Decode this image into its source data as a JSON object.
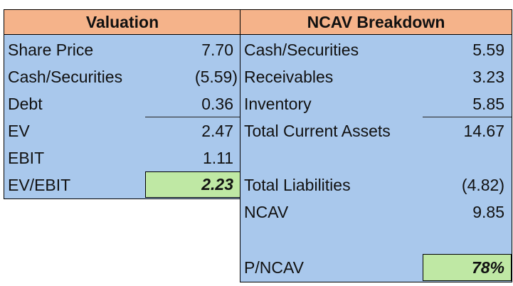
{
  "valuation": {
    "title": "Valuation",
    "rows": [
      {
        "label": "Share Price",
        "value": "7.70"
      },
      {
        "label": "Cash/Securities",
        "value": "(5.59)"
      },
      {
        "label": "Debt",
        "value": "0.36"
      },
      {
        "label": "EV",
        "value": "2.47"
      },
      {
        "label": "EBIT",
        "value": "1.11"
      },
      {
        "label": "EV/EBIT",
        "value": "2.23"
      }
    ]
  },
  "ncav": {
    "title": "NCAV Breakdown",
    "rows": [
      {
        "label": "Cash/Securities",
        "value": "5.59"
      },
      {
        "label": "Receivables",
        "value": "3.23"
      },
      {
        "label": "Inventory",
        "value": "5.85"
      },
      {
        "label": "Total Current Assets",
        "value": "14.67"
      },
      {
        "label": "Total Liabilities",
        "value": "(4.82)"
      },
      {
        "label": "NCAV",
        "value": "9.85"
      },
      {
        "label": "P/NCAV",
        "value": "78%"
      }
    ]
  },
  "colors": {
    "header_fill": "#f5b38a",
    "body_fill": "#a9c8ec",
    "highlight_fill": "#bfe8a4"
  }
}
